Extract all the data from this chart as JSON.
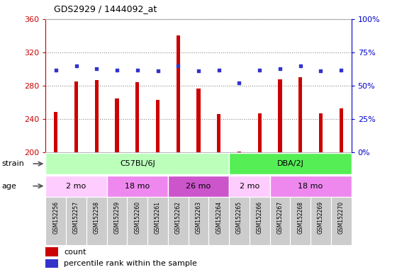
{
  "title": "GDS2929 / 1444092_at",
  "samples": [
    "GSM152256",
    "GSM152257",
    "GSM152258",
    "GSM152259",
    "GSM152260",
    "GSM152261",
    "GSM152262",
    "GSM152263",
    "GSM152264",
    "GSM152265",
    "GSM152266",
    "GSM152267",
    "GSM152268",
    "GSM152269",
    "GSM152270"
  ],
  "counts": [
    249,
    285,
    287,
    265,
    284,
    263,
    340,
    277,
    246,
    201,
    247,
    288,
    290,
    247,
    253
  ],
  "percentile_ranks": [
    62,
    65,
    63,
    62,
    62,
    61,
    65,
    61,
    62,
    52,
    62,
    63,
    65,
    61,
    62
  ],
  "count_baseline": 200,
  "ylim_left": [
    200,
    360
  ],
  "ylim_right": [
    0,
    100
  ],
  "yticks_left": [
    200,
    240,
    280,
    320,
    360
  ],
  "yticks_right": [
    0,
    25,
    50,
    75,
    100
  ],
  "bar_color": "#cc0000",
  "dot_color": "#3333cc",
  "strain_groups": [
    {
      "label": "C57BL/6J",
      "start": 0,
      "end": 9,
      "color": "#bbffbb"
    },
    {
      "label": "DBA/2J",
      "start": 9,
      "end": 15,
      "color": "#55ee55"
    }
  ],
  "age_groups": [
    {
      "label": "2 mo",
      "start": 0,
      "end": 3,
      "color": "#ffccff"
    },
    {
      "label": "18 mo",
      "start": 3,
      "end": 6,
      "color": "#ee88ee"
    },
    {
      "label": "26 mo",
      "start": 6,
      "end": 9,
      "color": "#cc55cc"
    },
    {
      "label": "2 mo",
      "start": 9,
      "end": 11,
      "color": "#ffccff"
    },
    {
      "label": "18 mo",
      "start": 11,
      "end": 15,
      "color": "#ee88ee"
    }
  ],
  "grid_color": "#888888",
  "bg_color": "#ffffff",
  "left_axis_color": "#cc0000",
  "right_axis_color": "#0000cc",
  "label_box_color": "#cccccc"
}
